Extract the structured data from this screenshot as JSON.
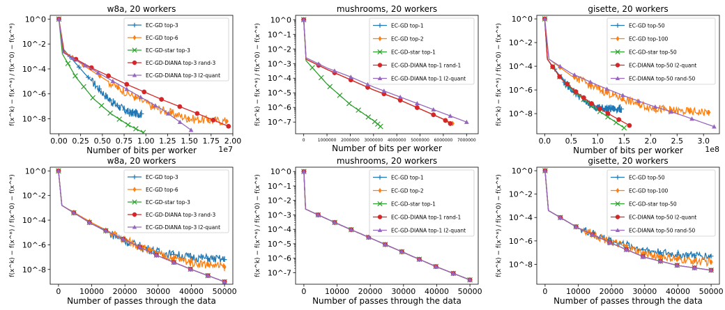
{
  "figure": {
    "xlabel_bits": "Number of bits per worker",
    "xlabel_passes": "Number of passes through the data",
    "ylabel": "f(x^k) − f(x^*) / f(x^0) − f(x^*)"
  },
  "chart_data": [
    {
      "type": "line",
      "title": "w8a, 20 workers",
      "xlabel": "Number of bits per worker",
      "x_multiplier": "1e7",
      "ylabel": "f(x^k) − f(x^*) / f(x^0) − f(x^*)",
      "xlim": [
        -0.1,
        2.0
      ],
      "ylim_log10": [
        -9.2,
        0.3
      ],
      "x_ticks": [
        "0.00",
        "0.25",
        "0.50",
        "0.75",
        "1.00",
        "1.25",
        "1.50",
        "1.75",
        "2.00"
      ],
      "x_tick_values": [
        0,
        0.25,
        0.5,
        0.75,
        1.0,
        1.25,
        1.5,
        1.75,
        2.0
      ],
      "y_ticks": [
        "10^0",
        "10^-2",
        "10^-4",
        "10^-6",
        "10^-8"
      ],
      "y_tick_values": [
        0,
        -2,
        -4,
        -6,
        -8
      ],
      "legend_position": "top-right",
      "y_scale": "log",
      "series": [
        {
          "name": "EC-GD top-3",
          "color": "#1f77b4",
          "marker": "plus",
          "noisy": true,
          "x": [
            0.0,
            0.05,
            0.3,
            0.6,
            0.8,
            0.95
          ],
          "log10_y": [
            0.0,
            -2.4,
            -4.4,
            -6.6,
            -7.5,
            -7.6
          ]
        },
        {
          "name": "EC-GD top-6",
          "color": "#ff7f0e",
          "marker": "diamond",
          "noisy": true,
          "x": [
            0.0,
            0.06,
            0.3,
            0.7,
            1.1,
            1.5,
            1.93
          ],
          "log10_y": [
            0.0,
            -2.6,
            -3.8,
            -5.6,
            -7.1,
            -8.0,
            -8.2
          ]
        },
        {
          "name": "EC-GD-star top-3",
          "color": "#2ca02c",
          "marker": "x",
          "noisy": false,
          "x": [
            0.0,
            0.04,
            0.2,
            0.4,
            0.6,
            0.8,
            0.97
          ],
          "log10_y": [
            0.0,
            -2.8,
            -4.7,
            -6.4,
            -7.6,
            -8.5,
            -9.1
          ]
        },
        {
          "name": "EC-GD-DIANA top-3 rand-3",
          "color": "#d62728",
          "marker": "circle",
          "noisy": false,
          "x": [
            0.0,
            0.06,
            0.4,
            0.8,
            1.2,
            1.6,
            1.95
          ],
          "log10_y": [
            0.0,
            -2.7,
            -4.0,
            -5.3,
            -6.5,
            -7.6,
            -8.6
          ]
        },
        {
          "name": "EC-GD-DIANA top-3 l2-quant",
          "color": "#9467bd",
          "marker": "triangle",
          "noisy": false,
          "x": [
            0.0,
            0.05,
            0.4,
            0.8,
            1.2,
            1.52
          ],
          "log10_y": [
            0.0,
            -2.7,
            -4.1,
            -5.7,
            -7.3,
            -8.9
          ]
        }
      ]
    },
    {
      "type": "line",
      "title": "mushrooms, 20 workers",
      "xlabel": "Number of bits per worker",
      "ylabel": "f(x^k) − f(x^*) / f(x^0) − f(x^*)",
      "xlim": [
        -350000,
        7500000
      ],
      "ylim_log10": [
        -7.8,
        0.3
      ],
      "x_ticks": [
        "0",
        "1000000",
        "2000000",
        "3000000",
        "4000000",
        "5000000",
        "6000000",
        "7000000"
      ],
      "x_tick_values": [
        0,
        1000000,
        2000000,
        3000000,
        4000000,
        5000000,
        6000000,
        7000000
      ],
      "y_ticks": [
        "10^0",
        "10^-1",
        "10^-2",
        "10^-3",
        "10^-4",
        "10^-5",
        "10^-6",
        "10^-7"
      ],
      "y_tick_values": [
        0,
        -1,
        -2,
        -3,
        -4,
        -5,
        -6,
        -7
      ],
      "legend_position": "top-right",
      "y_scale": "log",
      "series": [
        {
          "name": "EC-GD top-1",
          "color": "#1f77b4",
          "marker": "plus",
          "noisy": false,
          "x": [
            0,
            100000,
            1000000,
            2000000,
            3000000,
            4000000,
            5000000,
            6000000,
            6300000
          ],
          "log10_y": [
            0.0,
            -2.7,
            -3.4,
            -4.1,
            -4.8,
            -5.4,
            -6.1,
            -6.8,
            -7.1
          ]
        },
        {
          "name": "EC-GD top-2",
          "color": "#ff7f0e",
          "marker": "diamond",
          "noisy": false,
          "x": [
            0,
            100000,
            1000000,
            2000000,
            3000000,
            4000000,
            5000000,
            6000000,
            6400000
          ],
          "log10_y": [
            0.0,
            -2.7,
            -3.4,
            -4.1,
            -4.8,
            -5.4,
            -6.1,
            -6.8,
            -7.1
          ]
        },
        {
          "name": "EC-GD-star top-1",
          "color": "#2ca02c",
          "marker": "x",
          "noisy": false,
          "x": [
            0,
            100000,
            1000000,
            2000000,
            3000000,
            3300000
          ],
          "log10_y": [
            0.0,
            -2.8,
            -4.4,
            -5.8,
            -6.9,
            -7.3
          ]
        },
        {
          "name": "EC-GD-DIANA top-1 rand-1",
          "color": "#d62728",
          "marker": "circle",
          "noisy": false,
          "x": [
            0,
            100000,
            1000000,
            2000000,
            3000000,
            4000000,
            5000000,
            6000000,
            6300000
          ],
          "log10_y": [
            0.0,
            -2.7,
            -3.4,
            -4.1,
            -4.8,
            -5.4,
            -6.1,
            -6.8,
            -7.1
          ]
        },
        {
          "name": "EC-GD-DIANA top-1 l2-quant",
          "color": "#9467bd",
          "marker": "triangle",
          "noisy": false,
          "x": [
            0,
            100000,
            1000000,
            2000000,
            3000000,
            4000000,
            5000000,
            6000000,
            7000000
          ],
          "log10_y": [
            0.0,
            -2.6,
            -3.3,
            -3.9,
            -4.6,
            -5.2,
            -5.8,
            -6.4,
            -7.0
          ]
        }
      ]
    },
    {
      "type": "line",
      "title": "gisette, 20 workers",
      "xlabel": "Number of bits per worker",
      "x_multiplier": "1e8",
      "ylabel": "f(x^k) − f(x^*) / f(x^0) − f(x^*)",
      "xlim": [
        -0.15,
        3.3
      ],
      "ylim_log10": [
        -9.7,
        0.3
      ],
      "x_ticks": [
        "0.0",
        "0.5",
        "1.0",
        "1.5",
        "2.0",
        "2.5",
        "3.0"
      ],
      "x_tick_values": [
        0,
        0.5,
        1.0,
        1.5,
        2.0,
        2.5,
        3.0
      ],
      "y_ticks": [
        "10^0",
        "10^-2",
        "10^-4",
        "10^-6",
        "10^-8"
      ],
      "y_tick_values": [
        0,
        -2,
        -4,
        -6,
        -8
      ],
      "legend_position": "top-right",
      "y_scale": "log",
      "series": [
        {
          "name": "EC-GD top-50",
          "color": "#1f77b4",
          "marker": "plus",
          "noisy": true,
          "x": [
            0.0,
            0.05,
            0.4,
            0.8,
            1.0,
            1.2,
            1.45
          ],
          "log10_y": [
            0.0,
            -3.4,
            -5.5,
            -7.1,
            -7.5,
            -7.6,
            -7.6
          ]
        },
        {
          "name": "EC-GD top-100",
          "color": "#ff7f0e",
          "marker": "diamond",
          "noisy": true,
          "x": [
            0.0,
            0.08,
            0.5,
            1.0,
            1.5,
            2.0,
            2.5,
            3.1
          ],
          "log10_y": [
            0.0,
            -3.4,
            -4.8,
            -5.9,
            -6.8,
            -7.5,
            -7.8,
            -7.9
          ]
        },
        {
          "name": "EC-GD-star top-50",
          "color": "#2ca02c",
          "marker": "x",
          "noisy": false,
          "x": [
            0.0,
            0.05,
            0.3,
            0.6,
            0.9,
            1.2,
            1.5
          ],
          "log10_y": [
            0.0,
            -3.4,
            -5.0,
            -6.3,
            -7.4,
            -8.3,
            -9.2
          ]
        },
        {
          "name": "EC-DIANA top-50 l2-quant",
          "color": "#d62728",
          "marker": "circle",
          "noisy": false,
          "x": [
            0.0,
            0.05,
            0.3,
            0.6,
            0.9,
            1.2,
            1.6
          ],
          "log10_y": [
            0.0,
            -3.4,
            -5.0,
            -6.2,
            -7.2,
            -8.0,
            -9.0
          ]
        },
        {
          "name": "EC-DIANA top-50 rand-50",
          "color": "#9467bd",
          "marker": "triangle",
          "noisy": false,
          "x": [
            0.0,
            0.08,
            0.5,
            1.0,
            1.5,
            2.0,
            2.5,
            3.2
          ],
          "log10_y": [
            0.0,
            -3.4,
            -4.6,
            -5.6,
            -6.5,
            -7.3,
            -8.0,
            -9.1
          ]
        }
      ]
    },
    {
      "type": "line",
      "title": "w8a, 20 workers",
      "xlabel": "Number of passes through the data",
      "ylabel": "f(x^k) − f(x^*) / f(x^0) − f(x^*)",
      "xlim": [
        -2500,
        52500
      ],
      "ylim_log10": [
        -9.2,
        0.3
      ],
      "x_ticks": [
        "0",
        "10000",
        "20000",
        "30000",
        "40000",
        "50000"
      ],
      "x_tick_values": [
        0,
        10000,
        20000,
        30000,
        40000,
        50000
      ],
      "y_ticks": [
        "10^0",
        "10^-2",
        "10^-4",
        "10^-6",
        "10^-8"
      ],
      "y_tick_values": [
        0,
        -2,
        -4,
        -6,
        -8
      ],
      "legend_position": "top-right",
      "y_scale": "log",
      "series": [
        {
          "name": "EC-GD top-3",
          "color": "#1f77b4",
          "marker": "plus",
          "noisy": true,
          "x": [
            0,
            1000,
            10000,
            20000,
            30000,
            40000,
            50000
          ],
          "log10_y": [
            0.0,
            -2.8,
            -4.3,
            -5.7,
            -6.6,
            -7.0,
            -7.2
          ]
        },
        {
          "name": "EC-GD top-6",
          "color": "#ff7f0e",
          "marker": "diamond",
          "noisy": true,
          "x": [
            0,
            1000,
            10000,
            20000,
            30000,
            40000,
            50000
          ],
          "log10_y": [
            0.0,
            -2.8,
            -4.2,
            -5.6,
            -6.8,
            -7.4,
            -7.8
          ]
        },
        {
          "name": "EC-GD-star top-3",
          "color": "#2ca02c",
          "marker": "x",
          "noisy": false,
          "x": [
            0,
            1000,
            10000,
            20000,
            30000,
            40000,
            50000
          ],
          "log10_y": [
            0.0,
            -2.8,
            -4.3,
            -5.6,
            -6.9,
            -8.0,
            -9.0
          ]
        },
        {
          "name": "EC-GD-DIANA top-3 rand-3",
          "color": "#d62728",
          "marker": "circle",
          "noisy": false,
          "x": [
            0,
            1000,
            10000,
            20000,
            30000,
            40000,
            50000
          ],
          "log10_y": [
            0.0,
            -2.8,
            -4.3,
            -5.6,
            -6.9,
            -8.0,
            -9.0
          ]
        },
        {
          "name": "EC-GD-DIANA top-3 l2-quant",
          "color": "#9467bd",
          "marker": "triangle",
          "noisy": false,
          "x": [
            0,
            1000,
            10000,
            20000,
            30000,
            40000,
            50000
          ],
          "log10_y": [
            0.0,
            -2.8,
            -4.3,
            -5.6,
            -6.9,
            -8.0,
            -9.0
          ]
        }
      ]
    },
    {
      "type": "line",
      "title": "mushrooms, 20 workers",
      "xlabel": "Number of passes through the data",
      "ylabel": "f(x^k) − f(x^*) / f(x^0) − f(x^*)",
      "xlim": [
        -2500,
        52500
      ],
      "ylim_log10": [
        -7.8,
        0.3
      ],
      "x_ticks": [
        "0",
        "10000",
        "20000",
        "30000",
        "40000",
        "50000"
      ],
      "x_tick_values": [
        0,
        10000,
        20000,
        30000,
        40000,
        50000
      ],
      "y_ticks": [
        "10^0",
        "10^-1",
        "10^-2",
        "10^-3",
        "10^-4",
        "10^-5",
        "10^-6",
        "10^-7"
      ],
      "y_tick_values": [
        0,
        -1,
        -2,
        -3,
        -4,
        -5,
        -6,
        -7
      ],
      "legend_position": "top-right",
      "y_scale": "log",
      "series": [
        {
          "name": "EC-GD top-1",
          "color": "#1f77b4",
          "marker": "plus",
          "noisy": false,
          "x": [
            0,
            500,
            10000,
            20000,
            30000,
            40000,
            50000
          ],
          "log10_y": [
            0.0,
            -2.6,
            -3.6,
            -4.6,
            -5.6,
            -6.6,
            -7.5
          ]
        },
        {
          "name": "EC-GD top-2",
          "color": "#ff7f0e",
          "marker": "diamond",
          "noisy": false,
          "x": [
            0,
            500,
            10000,
            20000,
            30000,
            40000,
            50000
          ],
          "log10_y": [
            0.0,
            -2.6,
            -3.6,
            -4.6,
            -5.6,
            -6.6,
            -7.5
          ]
        },
        {
          "name": "EC-GD-star top-1",
          "color": "#2ca02c",
          "marker": "x",
          "noisy": false,
          "x": [
            0,
            500,
            10000,
            20000,
            30000,
            40000,
            50000
          ],
          "log10_y": [
            0.0,
            -2.6,
            -3.6,
            -4.6,
            -5.6,
            -6.6,
            -7.5
          ]
        },
        {
          "name": "EC-GD-DIANA top-1 rand-1",
          "color": "#d62728",
          "marker": "circle",
          "noisy": false,
          "x": [
            0,
            500,
            10000,
            20000,
            30000,
            40000,
            50000
          ],
          "log10_y": [
            0.0,
            -2.6,
            -3.6,
            -4.6,
            -5.6,
            -6.6,
            -7.5
          ]
        },
        {
          "name": "EC-GD-DIANA top-1 l2-quant",
          "color": "#9467bd",
          "marker": "triangle",
          "noisy": false,
          "x": [
            0,
            500,
            10000,
            20000,
            30000,
            40000,
            50000
          ],
          "log10_y": [
            0.0,
            -2.6,
            -3.6,
            -4.6,
            -5.6,
            -6.6,
            -7.5
          ]
        }
      ]
    },
    {
      "type": "line",
      "title": "gisette, 20 workers",
      "xlabel": "Number of passes through the data",
      "ylabel": "f(x^k) − f(x^*) / f(x^0) − f(x^*)",
      "xlim": [
        -2500,
        52500
      ],
      "ylim_log10": [
        -9.7,
        0.3
      ],
      "x_ticks": [
        "0",
        "10000",
        "20000",
        "30000",
        "40000",
        "50000"
      ],
      "x_tick_values": [
        0,
        10000,
        20000,
        30000,
        40000,
        50000
      ],
      "y_ticks": [
        "10^0",
        "10^-2",
        "10^-4",
        "10^-6",
        "10^-8"
      ],
      "y_tick_values": [
        0,
        -2,
        -4,
        -6,
        -8
      ],
      "legend_position": "top-right",
      "y_scale": "log",
      "series": [
        {
          "name": "EC-GD top-50",
          "color": "#1f77b4",
          "marker": "plus",
          "noisy": true,
          "x": [
            0,
            1000,
            10000,
            20000,
            30000,
            40000,
            50000
          ],
          "log10_y": [
            0.0,
            -3.4,
            -4.9,
            -6.0,
            -6.8,
            -7.2,
            -7.3
          ]
        },
        {
          "name": "EC-GD top-100",
          "color": "#ff7f0e",
          "marker": "diamond",
          "noisy": true,
          "x": [
            0,
            1000,
            10000,
            20000,
            30000,
            40000,
            50000
          ],
          "log10_y": [
            0.0,
            -3.4,
            -4.9,
            -6.1,
            -7.1,
            -7.6,
            -7.8
          ]
        },
        {
          "name": "EC-GD-star top-50",
          "color": "#2ca02c",
          "marker": "x",
          "noisy": false,
          "x": [
            0,
            1000,
            10000,
            20000,
            30000,
            40000,
            50000
          ],
          "log10_y": [
            0.0,
            -3.4,
            -4.9,
            -6.2,
            -7.4,
            -8.1,
            -8.5
          ]
        },
        {
          "name": "EC-DIANA top-50 l2-quant",
          "color": "#d62728",
          "marker": "circle",
          "noisy": false,
          "x": [
            0,
            1000,
            10000,
            20000,
            30000,
            40000,
            50000
          ],
          "log10_y": [
            0.0,
            -3.4,
            -4.9,
            -6.2,
            -7.4,
            -8.1,
            -8.5
          ]
        },
        {
          "name": "EC-DIANA top-50 rand-50",
          "color": "#9467bd",
          "marker": "triangle",
          "noisy": false,
          "x": [
            0,
            1000,
            10000,
            20000,
            30000,
            40000,
            50000
          ],
          "log10_y": [
            0.0,
            -3.4,
            -4.9,
            -6.2,
            -7.4,
            -8.1,
            -8.5
          ]
        }
      ]
    }
  ]
}
